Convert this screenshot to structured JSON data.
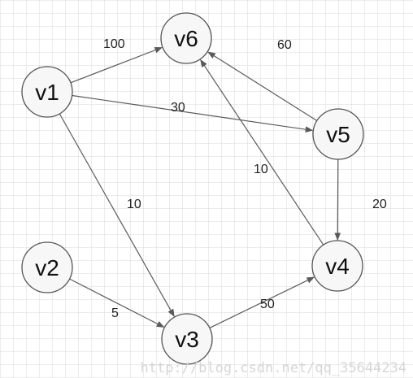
{
  "diagram": {
    "nodes": [
      {
        "id": "v1",
        "label": "v1"
      },
      {
        "id": "v2",
        "label": "v2"
      },
      {
        "id": "v3",
        "label": "v3"
      },
      {
        "id": "v4",
        "label": "v4"
      },
      {
        "id": "v5",
        "label": "v5"
      },
      {
        "id": "v6",
        "label": "v6"
      }
    ],
    "edges": [
      {
        "from": "v1",
        "to": "v6",
        "weight": "100"
      },
      {
        "from": "v1",
        "to": "v5",
        "weight": "30"
      },
      {
        "from": "v1",
        "to": "v3",
        "weight": "10"
      },
      {
        "from": "v2",
        "to": "v3",
        "weight": "5"
      },
      {
        "from": "v3",
        "to": "v4",
        "weight": "50"
      },
      {
        "from": "v4",
        "to": "v6",
        "weight": "10"
      },
      {
        "from": "v5",
        "to": "v6",
        "weight": "60"
      },
      {
        "from": "v5",
        "to": "v4",
        "weight": "20"
      }
    ]
  },
  "watermark": "http://blog.csdn.net/qq_35644234",
  "colors": {
    "grid": "#d9d9d9",
    "node_fill": "#f7f7f7",
    "edge": "#5a5a5a"
  }
}
